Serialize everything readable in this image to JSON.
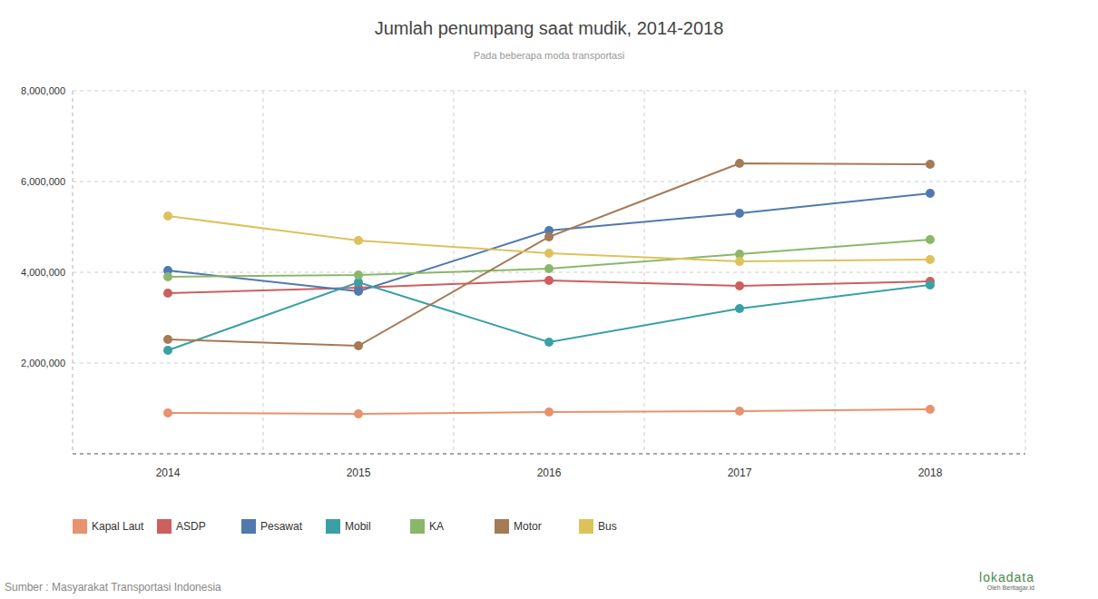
{
  "chart_data": {
    "type": "line",
    "title": "Jumlah penumpang saat mudik, 2014-2018",
    "subtitle": "Pada beberapa moda transportasi",
    "source": "Sumber : Masyarakat Transportasi Indonesia",
    "credit": [
      "lokadata",
      "Oleh Beritagar.id"
    ],
    "categories": [
      "2014",
      "2015",
      "2016",
      "2017",
      "2018"
    ],
    "series": [
      {
        "name": "Kapal Laut",
        "color": "#e8926e",
        "values": [
          900000,
          880000,
          920000,
          940000,
          980000
        ]
      },
      {
        "name": "ASDP",
        "color": "#cd5f5f",
        "values": [
          3540000,
          3660000,
          3820000,
          3700000,
          3800000
        ]
      },
      {
        "name": "Pesawat",
        "color": "#5079b0",
        "values": [
          4040000,
          3580000,
          4920000,
          5300000,
          5740000
        ]
      },
      {
        "name": "Mobil",
        "color": "#3aa0a6",
        "values": [
          2280000,
          3780000,
          2460000,
          3200000,
          3720000
        ]
      },
      {
        "name": "KA",
        "color": "#8ab86a",
        "values": [
          3900000,
          3940000,
          4080000,
          4400000,
          4720000
        ]
      },
      {
        "name": "Motor",
        "color": "#a57a55",
        "values": [
          2520000,
          2380000,
          4780000,
          6400000,
          6380000
        ]
      },
      {
        "name": "Bus",
        "color": "#ddc25c",
        "values": [
          5240000,
          4700000,
          4420000,
          4240000,
          4280000
        ]
      }
    ],
    "ylim": [
      0,
      8000000
    ],
    "yticks": [
      {
        "value": 2000000,
        "label": "2,000,000"
      },
      {
        "value": 4000000,
        "label": "4,000,000"
      },
      {
        "value": 6000000,
        "label": "6,000,000"
      },
      {
        "value": 8000000,
        "label": "8,000,000"
      }
    ],
    "grid": true,
    "legend": "bottom",
    "marker": "circle"
  }
}
